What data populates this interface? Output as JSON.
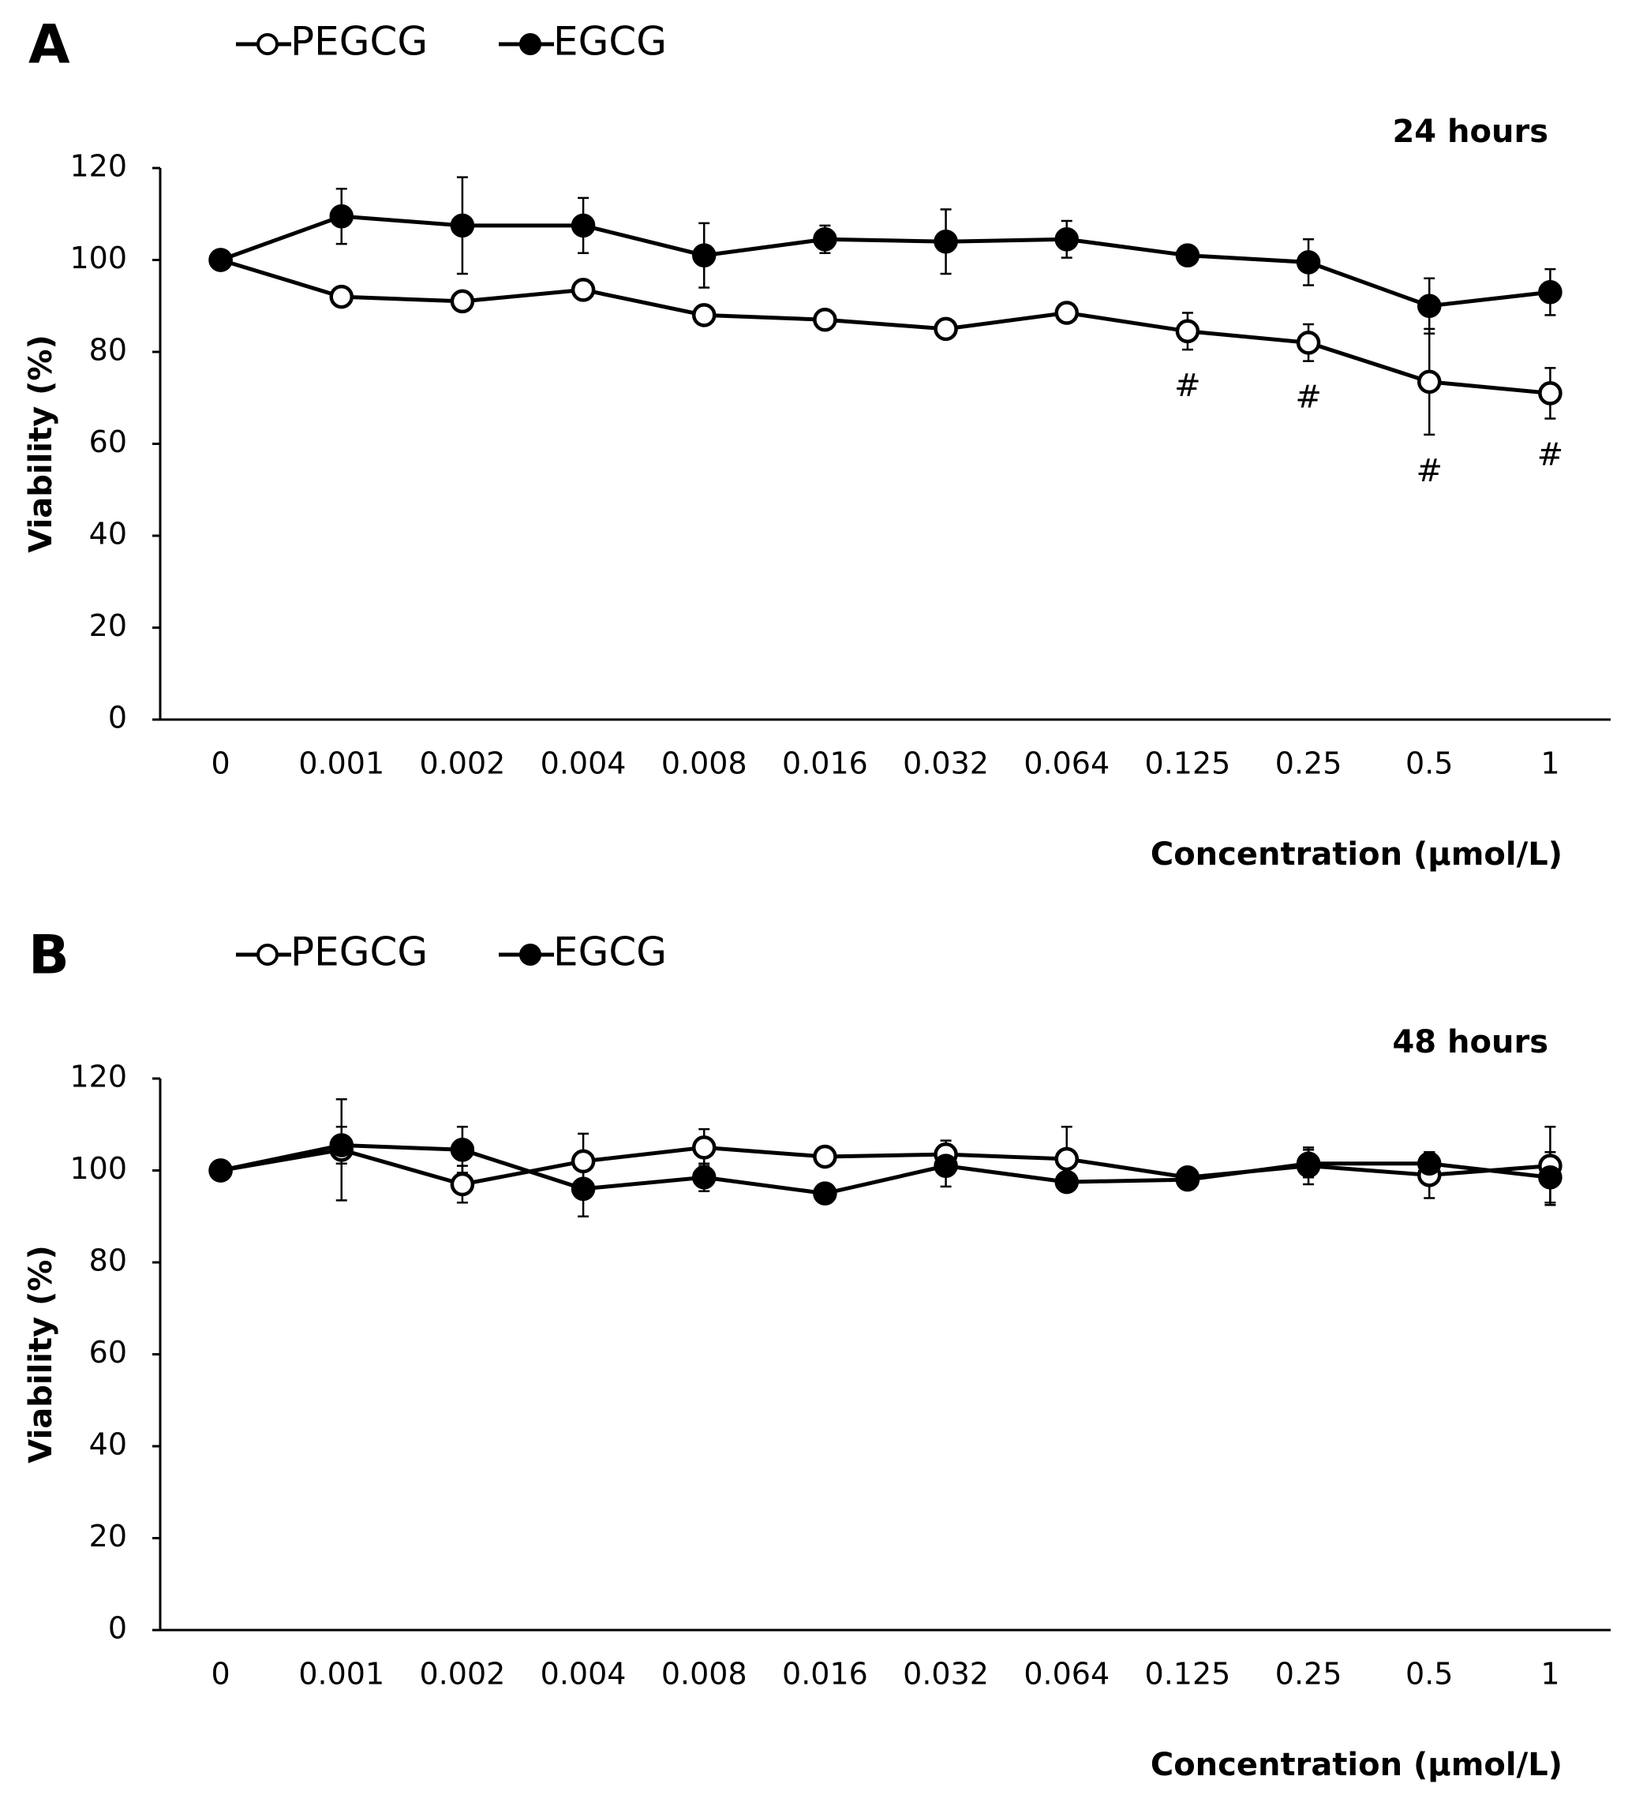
{
  "chart_data": [
    {
      "type": "line",
      "label": "A",
      "title": "24 hours",
      "x_label": "Concentration (µmol/L)",
      "y_label": "Viability (%)",
      "categories": [
        "0",
        "0.001",
        "0.002",
        "0.004",
        "0.008",
        "0.016",
        "0.032",
        "0.064",
        "0.125",
        "0.25",
        "0.5",
        "1"
      ],
      "ylim": [
        0,
        120
      ],
      "yticks": [
        0,
        20,
        40,
        60,
        80,
        100,
        120
      ],
      "series": [
        {
          "name": "PEGCG",
          "color": "#000000",
          "marker_fill": "#ffffff",
          "values": [
            100,
            92,
            91,
            93.5,
            88,
            87,
            85,
            88.5,
            84.5,
            82,
            73.5,
            71
          ],
          "errors": [
            0,
            1.5,
            1,
            1,
            1,
            1,
            1,
            2,
            4,
            4,
            11.5,
            5.5
          ],
          "annotations": [
            null,
            null,
            null,
            null,
            null,
            null,
            null,
            null,
            "#",
            "#",
            "#",
            "#"
          ]
        },
        {
          "name": "EGCG",
          "color": "#000000",
          "marker_fill": "#000000",
          "values": [
            100,
            109.5,
            107.5,
            107.5,
            101,
            104.5,
            104,
            104.5,
            101,
            99.5,
            90,
            93
          ],
          "errors": [
            0,
            6,
            10.5,
            6,
            7,
            3,
            7,
            4,
            0.5,
            5,
            6,
            5
          ]
        }
      ]
    },
    {
      "type": "line",
      "label": "B",
      "title": "48 hours",
      "x_label": "Concentration (µmol/L)",
      "y_label": "Viability (%)",
      "categories": [
        "0",
        "0.001",
        "0.002",
        "0.004",
        "0.008",
        "0.016",
        "0.032",
        "0.064",
        "0.125",
        "0.25",
        "0.5",
        "1"
      ],
      "ylim": [
        0,
        120
      ],
      "yticks": [
        0,
        20,
        40,
        60,
        80,
        100,
        120
      ],
      "series": [
        {
          "name": "PEGCG",
          "color": "#000000",
          "marker_fill": "#ffffff",
          "values": [
            100,
            104.5,
            97,
            102,
            105,
            103,
            103.5,
            102.5,
            98.5,
            101,
            99,
            101
          ],
          "errors": [
            0,
            11,
            4,
            6,
            4,
            1,
            3,
            7,
            1,
            4,
            5,
            8.5
          ]
        },
        {
          "name": "EGCG",
          "color": "#000000",
          "marker_fill": "#000000",
          "values": [
            100,
            105.5,
            104.5,
            96,
            98.5,
            95,
            101,
            97.5,
            98,
            101.5,
            101.5,
            98.5
          ],
          "errors": [
            0,
            4,
            5,
            6,
            3,
            1,
            4.5,
            1,
            1,
            3,
            2.5,
            5.5
          ]
        }
      ]
    }
  ]
}
